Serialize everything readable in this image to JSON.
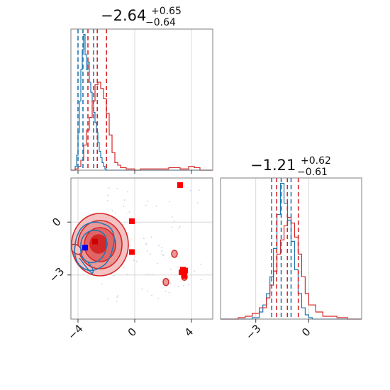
{
  "chart_data": [
    {
      "type": "histogram",
      "panel": "top-left",
      "title": {
        "median": "−2.64",
        "plus": "+0.65",
        "minus": "−0.64"
      },
      "xlim": [
        -4.5,
        5.5
      ],
      "xticks": [
        -4,
        0,
        4
      ],
      "quantiles": {
        "red": [
          -3.3,
          -2.64,
          -1.99
        ],
        "blue": [
          -4.0,
          -3.65,
          -2.9
        ]
      },
      "series": [
        {
          "name": "",
          "color": "#1f77b4",
          "bins": [
            [
              -4.5,
              0
            ],
            [
              -4.2,
              3
            ],
            [
              -4.1,
              12
            ],
            [
              -4.0,
              30
            ],
            [
              -3.9,
              55
            ],
            [
              -3.8,
              80
            ],
            [
              -3.7,
              96
            ],
            [
              -3.6,
              108
            ],
            [
              -3.5,
              92
            ],
            [
              -3.4,
              80
            ],
            [
              -3.3,
              86
            ],
            [
              -3.2,
              70
            ],
            [
              -3.1,
              62
            ],
            [
              -3.0,
              55
            ],
            [
              -2.9,
              46
            ],
            [
              -2.8,
              38
            ],
            [
              -2.7,
              30
            ],
            [
              -2.6,
              22
            ],
            [
              -2.5,
              15
            ],
            [
              -2.4,
              10
            ],
            [
              -2.3,
              6
            ],
            [
              -2.2,
              3
            ],
            [
              -2.1,
              1
            ],
            [
              -2.0,
              0
            ],
            [
              5.5,
              0
            ]
          ]
        },
        {
          "name": "",
          "color": "#d62728",
          "bins": [
            [
              -4.5,
              0
            ],
            [
              -4.2,
              1
            ],
            [
              -4.0,
              3
            ],
            [
              -3.8,
              8
            ],
            [
              -3.6,
              20
            ],
            [
              -3.4,
              32
            ],
            [
              -3.2,
              42
            ],
            [
              -3.0,
              55
            ],
            [
              -2.8,
              68
            ],
            [
              -2.6,
              70
            ],
            [
              -2.4,
              65
            ],
            [
              -2.2,
              57
            ],
            [
              -2.0,
              45
            ],
            [
              -1.8,
              28
            ],
            [
              -1.6,
              14
            ],
            [
              -1.4,
              6
            ],
            [
              -1.2,
              4
            ],
            [
              -1.0,
              2
            ],
            [
              -0.6,
              1
            ],
            [
              0.0,
              0
            ],
            [
              0.4,
              1
            ],
            [
              2.0,
              1
            ],
            [
              2.4,
              2
            ],
            [
              3.2,
              1
            ],
            [
              3.8,
              3
            ],
            [
              4.2,
              2
            ],
            [
              4.6,
              0
            ],
            [
              5.5,
              0
            ]
          ]
        }
      ]
    },
    {
      "type": "contour",
      "panel": "bottom-left",
      "xlim": [
        -4.5,
        5.5
      ],
      "ylim": [
        -5.5,
        2.5
      ],
      "xticks": [
        -4,
        0,
        4
      ],
      "yticks": [
        0,
        -3
      ],
      "points_red": [
        [
          3.2,
          2.1
        ],
        [
          -0.2,
          0.05
        ],
        [
          -0.2,
          -1.7
        ],
        [
          3.4,
          -2.7
        ],
        [
          3.55,
          -2.75
        ],
        [
          3.3,
          -2.85
        ],
        [
          3.5,
          -3.05
        ]
      ],
      "points_blue": [
        [
          -3.5,
          -1.45
        ],
        [
          -2.8,
          -1.1
        ]
      ],
      "islands": [
        [
          2.2,
          -3.4
        ],
        [
          2.8,
          -1.8
        ],
        [
          3.5,
          -3.1
        ]
      ]
    },
    {
      "type": "histogram",
      "panel": "bottom-right",
      "title": {
        "median": "−1.21",
        "plus": "+0.62",
        "minus": "−0.61"
      },
      "xlim": [
        -5.0,
        3.0
      ],
      "xticks": [
        -3,
        0
      ],
      "quantiles": {
        "red": [
          -1.82,
          -1.21,
          -0.59
        ],
        "blue": [
          -2.1,
          -1.56,
          -1.0
        ]
      },
      "series": [
        {
          "name": "",
          "color": "#1f77b4",
          "bins": [
            [
              -5.0,
              0
            ],
            [
              -3.2,
              1
            ],
            [
              -2.8,
              5
            ],
            [
              -2.6,
              10
            ],
            [
              -2.4,
              18
            ],
            [
              -2.2,
              30
            ],
            [
              -2.0,
              50
            ],
            [
              -1.8,
              74
            ],
            [
              -1.6,
              96
            ],
            [
              -1.4,
              82
            ],
            [
              -1.2,
              70
            ],
            [
              -1.0,
              55
            ],
            [
              -0.8,
              35
            ],
            [
              -0.6,
              18
            ],
            [
              -0.4,
              8
            ],
            [
              -0.2,
              3
            ],
            [
              0.0,
              1
            ],
            [
              0.2,
              0
            ],
            [
              3.0,
              0
            ]
          ]
        },
        {
          "name": "",
          "color": "#d62728",
          "bins": [
            [
              -5.0,
              0
            ],
            [
              -4.0,
              1
            ],
            [
              -3.6,
              2
            ],
            [
              -3.2,
              4
            ],
            [
              -2.8,
              8
            ],
            [
              -2.4,
              15
            ],
            [
              -2.2,
              24
            ],
            [
              -2.0,
              34
            ],
            [
              -1.8,
              46
            ],
            [
              -1.6,
              56
            ],
            [
              -1.4,
              66
            ],
            [
              -1.2,
              72
            ],
            [
              -1.0,
              68
            ],
            [
              -0.8,
              58
            ],
            [
              -0.6,
              46
            ],
            [
              -0.4,
              30
            ],
            [
              -0.2,
              18
            ],
            [
              0.0,
              10
            ],
            [
              0.4,
              5
            ],
            [
              0.8,
              2
            ],
            [
              1.6,
              1
            ],
            [
              2.2,
              0
            ],
            [
              3.0,
              0
            ]
          ]
        }
      ]
    }
  ]
}
